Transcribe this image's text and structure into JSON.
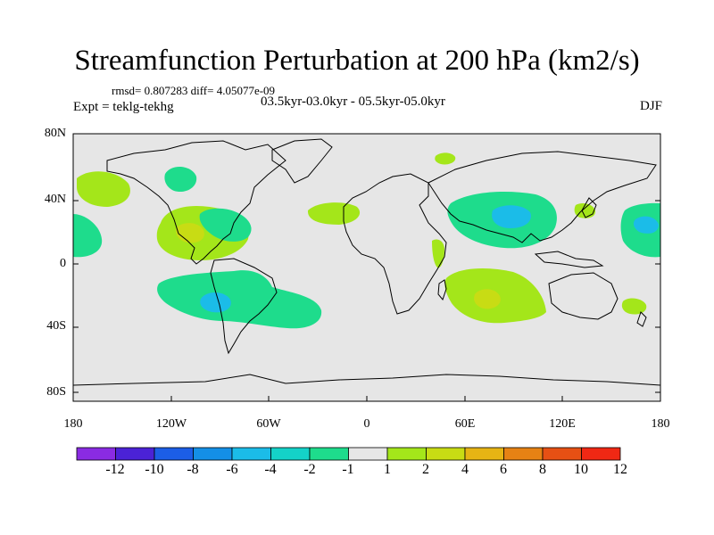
{
  "title": "Streamfunction Perturbation at 200 hPa (km2/s)",
  "stats": "rmsd= 0.807283 diff= 4.05077e-09",
  "experiment": "Expt = teklg-tekhg",
  "period": "03.5kyr-03.0kyr - 05.5kyr-05.0kyr",
  "season": "DJF",
  "y_axis_labels": [
    "80N",
    "40N",
    "0",
    "40S",
    "80S"
  ],
  "x_axis_labels": [
    "180",
    "120W",
    "60W",
    "0",
    "60E",
    "120E",
    "180"
  ],
  "colorbar": {
    "labels": [
      "-12",
      "-10",
      "-8",
      "-6",
      "-4",
      "-2",
      "-1",
      "1",
      "2",
      "4",
      "6",
      "8",
      "10",
      "12"
    ],
    "colors": [
      "#8a2be2",
      "#4b22d6",
      "#1c5ee6",
      "#148fe6",
      "#1bbce8",
      "#14d2c8",
      "#1edc8c",
      "#e6e6e6",
      "#a4e61a",
      "#c8dc14",
      "#e6b414",
      "#e68214",
      "#e65014",
      "#f02814"
    ]
  },
  "colors": {
    "land_sea_background": "#e6e6e6",
    "coastline": "#000000"
  }
}
